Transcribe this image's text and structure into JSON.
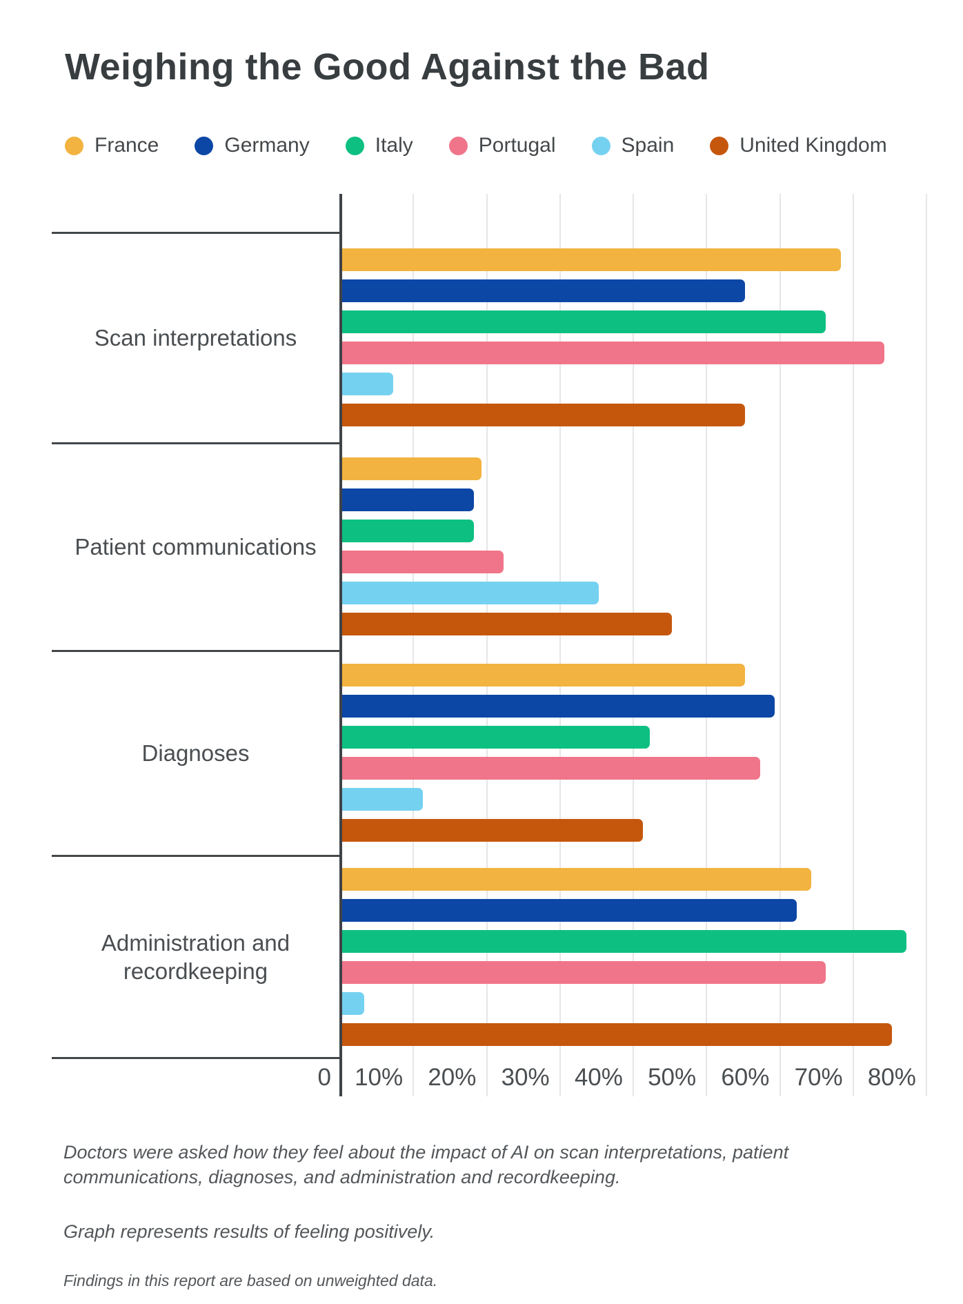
{
  "title": "Weighing the Good Against the Bad",
  "legend": {
    "items": [
      {
        "label": "France",
        "color": "#F2B340"
      },
      {
        "label": "Germany",
        "color": "#0D47A6"
      },
      {
        "label": "Italy",
        "color": "#0DC081"
      },
      {
        "label": "Portugal",
        "color": "#F0758A"
      },
      {
        "label": "Spain",
        "color": "#75D1F0"
      },
      {
        "label": "United Kingdom",
        "color": "#C5570D"
      }
    ]
  },
  "chart_data": {
    "type": "bar",
    "orientation": "horizontal",
    "categories": [
      "Scan interpretations",
      "Patient communications",
      "Diagnoses",
      "Administration and recordkeeping"
    ],
    "series": [
      {
        "name": "France",
        "color": "#F2B340",
        "values": [
          68,
          19,
          55,
          64
        ]
      },
      {
        "name": "Germany",
        "color": "#0D47A6",
        "values": [
          55,
          18,
          59,
          62
        ]
      },
      {
        "name": "Italy",
        "color": "#0DC081",
        "values": [
          66,
          18,
          42,
          77
        ]
      },
      {
        "name": "Portugal",
        "color": "#F0758A",
        "values": [
          74,
          22,
          57,
          66
        ]
      },
      {
        "name": "Spain",
        "color": "#75D1F0",
        "values": [
          7,
          35,
          11,
          3
        ]
      },
      {
        "name": "United Kingdom",
        "color": "#C5570D",
        "values": [
          55,
          45,
          41,
          75
        ]
      }
    ],
    "x_tick_labels": [
      "0",
      "10%",
      "20%",
      "30%",
      "40%",
      "50%",
      "60%",
      "70%",
      "80%"
    ],
    "xlim": [
      0,
      80
    ],
    "grid": true,
    "legend_position": "top"
  },
  "footnotes": {
    "line1": "Doctors were asked how they feel about the impact of AI on scan interpretations, patient communications, diagnoses, and administration and recordkeeping.",
    "line2": "Graph represents results of feeling positively.",
    "line3": "Findings in this report are based on unweighted data."
  }
}
